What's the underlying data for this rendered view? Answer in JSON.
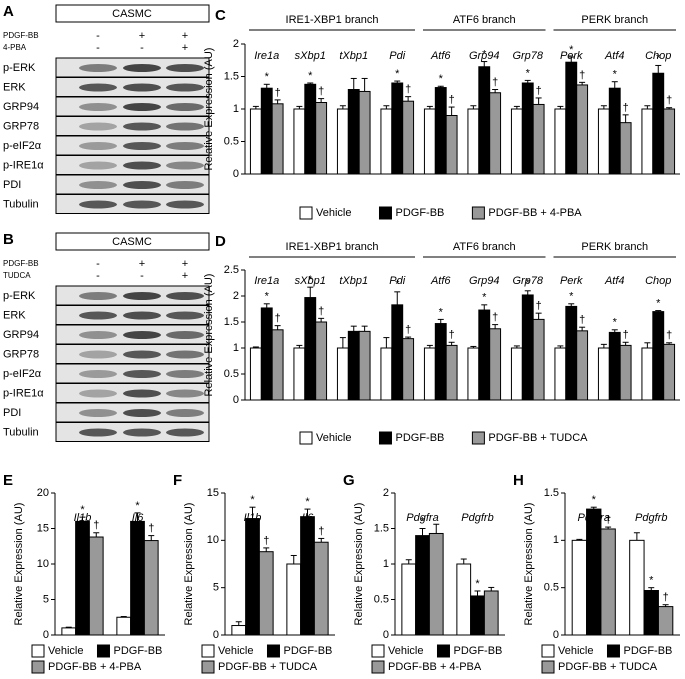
{
  "blots": [
    {
      "panel": "A",
      "cell": "CASMC",
      "treatments": [
        {
          "name": "PDGF-BB",
          "signs": [
            "-",
            "+",
            "+"
          ]
        },
        {
          "name": "4-PBA",
          "signs": [
            "-",
            "-",
            "+"
          ]
        }
      ],
      "bands": [
        "p-ERK",
        "ERK",
        "GRP94",
        "GRP78",
        "p-eIF2α",
        "p-IRE1α",
        "PDI",
        "Tubulin"
      ]
    },
    {
      "panel": "B",
      "cell": "CASMC",
      "treatments": [
        {
          "name": "PDGF-BB",
          "signs": [
            "-",
            "+",
            "+"
          ]
        },
        {
          "name": "TUDCA",
          "signs": [
            "-",
            "-",
            "+"
          ]
        }
      ],
      "bands": [
        "p-ERK",
        "ERK",
        "GRP94",
        "GRP78",
        "p-eIF2α",
        "p-IRE1α",
        "PDI",
        "Tubulin"
      ]
    }
  ],
  "chart_data": [
    {
      "panel": "C",
      "type": "bar",
      "ylabel": "Relative Expression (AU)",
      "groups": [
        "IRE1-XBP1 branch",
        "ATF6 branch",
        "PERK branch"
      ],
      "categories": [
        "Ire1a",
        "sXbp1",
        "tXbp1",
        "Pdi",
        "Atf6",
        "Grp94",
        "Grp78",
        "Perk",
        "Atf4",
        "Chop"
      ],
      "ylim": [
        0,
        2
      ],
      "yticks": [
        0,
        0.5,
        1,
        1.5,
        2
      ],
      "legend": "bottom",
      "series": [
        {
          "name": "Vehicle",
          "color": "#ffffff",
          "values": [
            1,
            1,
            1,
            1,
            1,
            1,
            1,
            1,
            1,
            1
          ],
          "errors": [
            0.04,
            0.04,
            0.05,
            0.05,
            0.04,
            0.05,
            0.04,
            0.04,
            0.05,
            0.05
          ]
        },
        {
          "name": "PDGF-BB",
          "color": "#000000",
          "values": [
            1.32,
            1.38,
            1.3,
            1.4,
            1.33,
            1.65,
            1.4,
            1.72,
            1.32,
            1.55
          ],
          "errors": [
            0.06,
            0.02,
            0.17,
            0.03,
            0.02,
            0.08,
            0.04,
            0.08,
            0.1,
            0.12
          ],
          "markers": [
            "*",
            "*",
            null,
            "*",
            "*",
            "*",
            "*",
            "*",
            "*",
            "*"
          ]
        },
        {
          "name": "PDGF-BB + 4-PBA",
          "color": "#999999",
          "values": [
            1.08,
            1.1,
            1.27,
            1.12,
            0.9,
            1.25,
            1.07,
            1.37,
            0.79,
            1.0
          ],
          "errors": [
            0.06,
            0.06,
            0.2,
            0.07,
            0.13,
            0.05,
            0.1,
            0.04,
            0.12,
            0.02
          ],
          "markers": [
            "†",
            "†",
            null,
            "†",
            "†",
            "†",
            "†",
            "†",
            "†",
            "†"
          ]
        }
      ]
    },
    {
      "panel": "D",
      "type": "bar",
      "ylabel": "Relative Expression (AU)",
      "groups": [
        "IRE1-XBP1 branch",
        "ATF6 branch",
        "PERK branch"
      ],
      "categories": [
        "Ire1a",
        "sXbp1",
        "tXbp1",
        "Pdi",
        "Atf6",
        "Grp94",
        "Grp78",
        "Perk",
        "Atf4",
        "Chop"
      ],
      "ylim": [
        0,
        2.5
      ],
      "yticks": [
        0,
        0.5,
        1,
        1.5,
        2,
        2.5
      ],
      "legend": "bottom",
      "series": [
        {
          "name": "Vehicle",
          "color": "#ffffff",
          "values": [
            1,
            1,
            1,
            1,
            1,
            1,
            1,
            1,
            1,
            1
          ],
          "errors": [
            0.02,
            0.05,
            0.2,
            0.2,
            0.05,
            0.03,
            0.04,
            0.04,
            0.07,
            0.1
          ]
        },
        {
          "name": "PDGF-BB",
          "color": "#000000",
          "values": [
            1.77,
            1.97,
            1.32,
            1.83,
            1.47,
            1.73,
            2.02,
            1.8,
            1.3,
            1.7
          ],
          "errors": [
            0.08,
            0.2,
            0.1,
            0.25,
            0.08,
            0.1,
            0.08,
            0.05,
            0.05,
            0.02
          ],
          "markers": [
            "*",
            "*",
            null,
            "*",
            "*",
            "*",
            "*",
            "*",
            "*",
            "*"
          ]
        },
        {
          "name": "PDGF-BB + TUDCA",
          "color": "#999999",
          "values": [
            1.35,
            1.5,
            1.32,
            1.18,
            1.05,
            1.37,
            1.55,
            1.33,
            1.05,
            1.07
          ],
          "errors": [
            0.08,
            0.07,
            0.1,
            0.03,
            0.06,
            0.08,
            0.12,
            0.07,
            0.06,
            0.03
          ],
          "markers": [
            "†",
            "†",
            null,
            "†",
            "†",
            "†",
            "†",
            "†",
            "†",
            "†"
          ]
        }
      ]
    },
    {
      "panel": "E",
      "type": "bar",
      "ylabel": "Relative Expression (AU)",
      "categories": [
        "Il1b",
        "Il6"
      ],
      "ylim": [
        0,
        20
      ],
      "yticks": [
        0,
        5,
        10,
        15,
        20
      ],
      "legend": "bottom",
      "series": [
        {
          "name": "Vehicle",
          "color": "#ffffff",
          "values": [
            1,
            2.5
          ],
          "errors": [
            0.1,
            0.1
          ]
        },
        {
          "name": "PDGF-BB",
          "color": "#000000",
          "values": [
            16,
            16
          ],
          "errors": [
            0.6,
            1.2
          ],
          "markers": [
            "*",
            "*"
          ]
        },
        {
          "name": "PDGF-BB + 4-PBA",
          "color": "#999999",
          "values": [
            13.8,
            13.3
          ],
          "errors": [
            0.6,
            0.7
          ],
          "markers": [
            "†",
            "†"
          ]
        }
      ]
    },
    {
      "panel": "F",
      "type": "bar",
      "ylabel": "Relative Expression (AU)",
      "categories": [
        "Il1b",
        "Il6"
      ],
      "ylim": [
        0,
        15
      ],
      "yticks": [
        0,
        5,
        10,
        15
      ],
      "legend": "bottom",
      "series": [
        {
          "name": "Vehicle",
          "color": "#ffffff",
          "values": [
            1,
            7.5
          ],
          "errors": [
            0.4,
            0.9
          ]
        },
        {
          "name": "PDGF-BB",
          "color": "#000000",
          "values": [
            12.3,
            12.5
          ],
          "errors": [
            1.2,
            0.8
          ],
          "markers": [
            "*",
            "*"
          ]
        },
        {
          "name": "PDGF-BB + TUDCA",
          "color": "#999999",
          "values": [
            8.8,
            9.8
          ],
          "errors": [
            0.4,
            0.4
          ],
          "markers": [
            "†",
            "†"
          ]
        }
      ]
    },
    {
      "panel": "G",
      "type": "bar",
      "ylabel": "Relative Expression (AU)",
      "categories": [
        "Pdgfra",
        "Pdgfrb"
      ],
      "ylim": [
        0,
        2
      ],
      "yticks": [
        0,
        0.5,
        1,
        1.5,
        2
      ],
      "legend": "bottom",
      "series": [
        {
          "name": "Vehicle",
          "color": "#ffffff",
          "values": [
            1,
            1
          ],
          "errors": [
            0.06,
            0.07
          ]
        },
        {
          "name": "PDGF-BB",
          "color": "#000000",
          "values": [
            1.4,
            0.55
          ],
          "errors": [
            0.1,
            0.07
          ],
          "markers": [
            "*",
            "*"
          ]
        },
        {
          "name": "PDGF-BB + 4-PBA",
          "color": "#999999",
          "values": [
            1.43,
            0.62
          ],
          "errors": [
            0.13,
            0.05
          ]
        }
      ]
    },
    {
      "panel": "H",
      "type": "bar",
      "ylabel": "Relative Expression (AU)",
      "categories": [
        "Pdgfra",
        "Pdgfrb"
      ],
      "ylim": [
        0,
        1.5
      ],
      "yticks": [
        0,
        0.5,
        1,
        1.5
      ],
      "legend": "bottom",
      "series": [
        {
          "name": "Vehicle",
          "color": "#ffffff",
          "values": [
            1,
            1
          ],
          "errors": [
            0.01,
            0.08
          ]
        },
        {
          "name": "PDGF-BB",
          "color": "#000000",
          "values": [
            1.33,
            0.47
          ],
          "errors": [
            0.02,
            0.03
          ],
          "markers": [
            "*",
            "*"
          ]
        },
        {
          "name": "PDGF-BB + TUDCA",
          "color": "#999999",
          "values": [
            1.12,
            0.3
          ],
          "errors": [
            0.02,
            0.02
          ],
          "markers": [
            "†",
            "†"
          ]
        }
      ]
    }
  ]
}
